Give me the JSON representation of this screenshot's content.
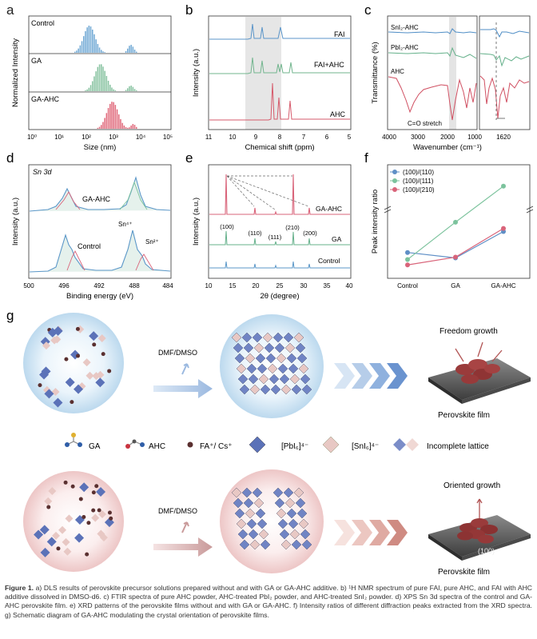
{
  "panels": {
    "a": {
      "letter": "a",
      "rows": [
        "Control",
        "GA",
        "GA-AHC"
      ],
      "ylabel": "Normalized Intensity",
      "xlabel": "Size (nm)",
      "xticks": [
        "10⁰",
        "10¹",
        "10²",
        "10³",
        "10⁴",
        "10⁵"
      ]
    },
    "b": {
      "letter": "b",
      "ylabel": "Intensity (a.u.)",
      "xlabel": "Chemical shift (ppm)",
      "traces": [
        "FAI",
        "FAI+AHC",
        "AHC"
      ],
      "xticks": [
        "11",
        "10",
        "9",
        "8",
        "7",
        "6",
        "5"
      ]
    },
    "c": {
      "letter": "c",
      "ylabel": "Transmittance (%)",
      "xlabel": "Wavenumber (cm⁻¹)",
      "traces": [
        "SnI₂-AHC",
        "PbI₂-AHC",
        "AHC"
      ],
      "annotation": "C=O stretch",
      "xticks": [
        "4000",
        "3000",
        "2000",
        "1000"
      ],
      "inset_tick": "1620"
    },
    "d": {
      "letter": "d",
      "title": "Sn 3d",
      "ylabel": "Intensity (a.u.)",
      "xlabel": "Binding energy (eV)",
      "traces": [
        "GA-AHC",
        "Control"
      ],
      "peak_labels": [
        "Sn⁴⁺",
        "Sn²⁺"
      ],
      "xticks": [
        "500",
        "496",
        "492",
        "488",
        "484"
      ]
    },
    "e": {
      "letter": "e",
      "ylabel": "Intensity (a.u.)",
      "xlabel": "2θ (degree)",
      "traces": [
        "GA-AHC",
        "GA",
        "Control"
      ],
      "peaks": [
        "(100)",
        "(110)",
        "(111)",
        "(210)",
        "(200)"
      ],
      "xticks": [
        "10",
        "15",
        "20",
        "25",
        "30",
        "35",
        "40"
      ]
    },
    "f": {
      "letter": "f",
      "ylabel": "Peak intensity ratio"
    },
    "g": {
      "letter": "g",
      "top_solvent": "DMF/DMSO",
      "top_result": "Freedom growth",
      "top_film": "Perovskite film",
      "bottom_solvent": "DMF/DMSO",
      "bottom_result": "Oriented growth",
      "bottom_film": "Perovskite film",
      "bottom_plane": "(100)",
      "legend": [
        "GA",
        "AHC",
        "FA⁺/ Cs⁺",
        "[PbI₆]⁴⁻",
        "[SnI₆]⁴⁻",
        "Incomplete lattice"
      ]
    }
  },
  "chart_data": [
    {
      "type": "line",
      "title": "f",
      "xlabel": "",
      "ylabel": "Peak intensity ratio",
      "categories": [
        "Control",
        "GA",
        "GA-AHC"
      ],
      "series": [
        {
          "name": "(100)/(110)",
          "values": [
            2.5,
            1.8,
            5.2
          ],
          "color": "#5f8fc6"
        },
        {
          "name": "(100)/(111)",
          "values": [
            1.6,
            6.4,
            17.5
          ],
          "color": "#7cc39d"
        },
        {
          "name": "(100)/(210)",
          "values": [
            0.9,
            1.9,
            5.6
          ],
          "color": "#d9647a"
        }
      ],
      "ylim": [
        0,
        19
      ],
      "axis_break": true
    }
  ],
  "caption": {
    "lead": "Figure 1.",
    "text": "a) DLS results of perovskite precursor solutions prepared without and with GA or GA-AHC additive. b) ¹H NMR spectrum of pure FAI, pure AHC, and FAI with AHC additive dissolved in DMSO-d6. c) FTIR spectra of pure AHC powder, AHC-treated PbI₂ powder, and AHC-treated SnI₂ powder. d) XPS Sn 3d spectra of the control and GA-AHC perovskite film. e) XRD patterns of the perovskite films without and with GA or GA-AHC. f) Intensity ratios of different diffraction peaks extracted from the XRD spectra. g) Schematic diagram of GA-AHC modulating the crystal orientation of perovskite films."
  }
}
